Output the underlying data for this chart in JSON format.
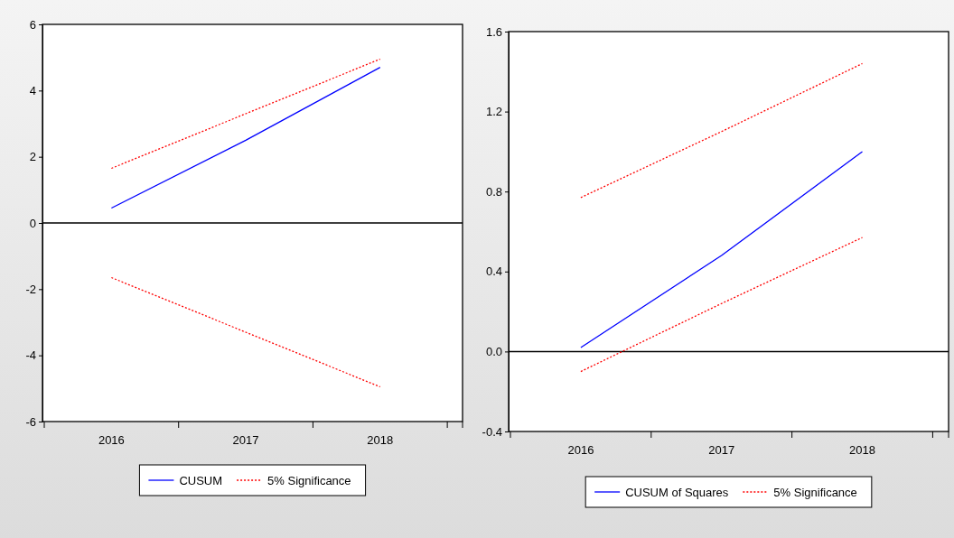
{
  "chart_data": [
    {
      "type": "line",
      "categories": [
        "2016",
        "2017",
        "2018"
      ],
      "ylim": [
        -6,
        6
      ],
      "yticks": [
        -6,
        -4,
        -2,
        0,
        2,
        4,
        6
      ],
      "grid": false,
      "legend": "bottom",
      "ref_lines": [
        {
          "axis": "y",
          "value": 0,
          "color": "#000000"
        }
      ],
      "series": [
        {
          "name": "CUSUM",
          "color": "#0000ff",
          "line_style": "solid",
          "values": [
            0.45,
            2.5,
            4.7
          ]
        },
        {
          "name": "5% Significance",
          "color": "#ff0000",
          "line_style": "dotted",
          "values": [
            1.65,
            3.3,
            4.95
          ]
        },
        {
          "color": "#ff0000",
          "line_style": "dotted",
          "values": [
            -1.65,
            -3.3,
            -4.95
          ]
        }
      ]
    },
    {
      "type": "line",
      "categories": [
        "2016",
        "2017",
        "2018"
      ],
      "ylim": [
        -0.4,
        1.6
      ],
      "yticks": [
        {
          "value": -0.4,
          "label": "-0.4"
        },
        {
          "value": 0,
          "label": "0.0"
        },
        {
          "value": 0.4,
          "label": "0.4"
        },
        {
          "value": 0.8,
          "label": "0.8"
        },
        {
          "value": 1.2,
          "label": "1.2"
        },
        {
          "value": 1.6,
          "label": "1.6"
        }
      ],
      "grid": false,
      "legend": "bottom",
      "ref_lines": [
        {
          "axis": "y",
          "value": 0,
          "color": "#000000"
        }
      ],
      "series": [
        {
          "name": "CUSUM of Squares",
          "color": "#0000ff",
          "line_style": "solid",
          "values": [
            0.02,
            0.48,
            1.0
          ]
        },
        {
          "name": "5% Significance",
          "color": "#ff0000",
          "line_style": "dotted",
          "values": [
            0.77,
            1.1,
            1.44
          ]
        },
        {
          "color": "#ff0000",
          "line_style": "dotted",
          "values": [
            -0.1,
            0.24,
            0.57
          ]
        }
      ]
    }
  ]
}
